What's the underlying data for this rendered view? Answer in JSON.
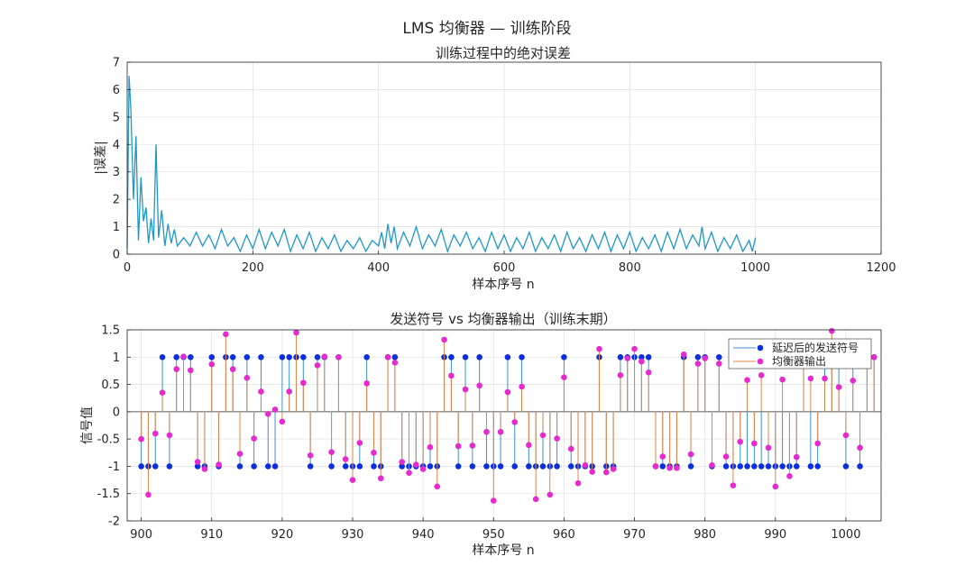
{
  "figure": {
    "suptitle": "LMS 均衡器 — 训练阶段"
  },
  "chart_data": [
    {
      "type": "line",
      "title": "训练过程中的绝对误差",
      "xlabel": "样本序号 n",
      "ylabel": "|误差|",
      "xlim": [
        0,
        1200
      ],
      "ylim": [
        0,
        7
      ],
      "xticks": [
        "0",
        "200",
        "400",
        "600",
        "800",
        "1000",
        "1200"
      ],
      "yticks": [
        "0",
        "1",
        "2",
        "3",
        "4",
        "5",
        "6",
        "7"
      ],
      "grid": true,
      "color": "#1f97c9",
      "x": [
        0,
        3,
        6,
        10,
        14,
        18,
        22,
        26,
        30,
        34,
        38,
        42,
        46,
        50,
        55,
        60,
        65,
        70,
        75,
        80,
        90,
        100,
        110,
        120,
        130,
        140,
        150,
        160,
        170,
        180,
        190,
        200,
        210,
        220,
        230,
        240,
        250,
        260,
        270,
        280,
        290,
        300,
        310,
        320,
        330,
        340,
        350,
        360,
        370,
        380,
        390,
        400,
        405,
        410,
        415,
        420,
        425,
        430,
        440,
        450,
        460,
        470,
        480,
        490,
        500,
        510,
        520,
        530,
        540,
        550,
        560,
        570,
        580,
        590,
        600,
        610,
        620,
        630,
        640,
        650,
        660,
        670,
        680,
        690,
        700,
        710,
        720,
        730,
        740,
        750,
        760,
        770,
        780,
        790,
        800,
        810,
        820,
        830,
        840,
        850,
        860,
        870,
        880,
        890,
        900,
        910,
        915,
        920,
        930,
        940,
        950,
        960,
        970,
        980,
        990,
        995,
        1000
      ],
      "values": [
        0.2,
        6.5,
        5.2,
        2.0,
        4.3,
        0.5,
        2.8,
        1.2,
        1.7,
        0.4,
        1.3,
        0.5,
        4.0,
        0.6,
        1.6,
        0.3,
        1.1,
        0.4,
        0.9,
        0.3,
        0.6,
        0.3,
        0.8,
        0.3,
        0.7,
        0.2,
        0.9,
        0.3,
        0.6,
        0.1,
        0.7,
        0.2,
        0.9,
        0.2,
        0.8,
        0.3,
        0.9,
        0.1,
        0.7,
        0.2,
        0.8,
        0.1,
        0.6,
        0.2,
        0.7,
        0.1,
        0.5,
        0.2,
        0.6,
        0.1,
        0.5,
        0.3,
        0.8,
        0.2,
        1.1,
        0.4,
        1.0,
        0.2,
        0.8,
        0.3,
        1.0,
        0.2,
        0.7,
        0.3,
        0.9,
        0.1,
        0.7,
        0.3,
        0.8,
        0.2,
        0.6,
        0.1,
        0.8,
        0.2,
        0.7,
        0.1,
        0.6,
        0.2,
        0.8,
        0.1,
        0.6,
        0.2,
        0.7,
        0.1,
        0.8,
        0.2,
        0.6,
        0.1,
        0.7,
        0.2,
        0.8,
        0.1,
        0.7,
        0.2,
        0.8,
        0.1,
        0.6,
        0.2,
        0.7,
        0.1,
        0.8,
        0.2,
        0.9,
        0.2,
        0.7,
        0.3,
        1.0,
        0.2,
        0.8,
        0.1,
        0.6,
        0.2,
        0.7,
        0.1,
        0.5,
        0.1,
        0.6
      ]
    },
    {
      "type": "stem",
      "title": "发送符号 vs 均衡器输出（训练末期）",
      "xlabel": "样本序号 n",
      "ylabel": "信号值",
      "xlim": [
        898,
        1005
      ],
      "ylim": [
        -2,
        1.5
      ],
      "xticks": [
        "900",
        "910",
        "920",
        "930",
        "940",
        "950",
        "960",
        "970",
        "980",
        "990",
        "1000"
      ],
      "yticks": [
        "-2",
        "-1.5",
        "-1",
        "-0.5",
        "0",
        "0.5",
        "1",
        "1.5"
      ],
      "grid": true,
      "legend": "top-right",
      "x": [
        900,
        901,
        902,
        903,
        904,
        905,
        906,
        907,
        908,
        909,
        910,
        911,
        912,
        913,
        914,
        915,
        916,
        917,
        918,
        919,
        920,
        921,
        922,
        923,
        924,
        925,
        926,
        927,
        928,
        929,
        930,
        931,
        932,
        933,
        934,
        935,
        936,
        937,
        938,
        939,
        940,
        941,
        942,
        943,
        944,
        945,
        946,
        947,
        948,
        949,
        950,
        951,
        952,
        953,
        954,
        955,
        956,
        957,
        958,
        959,
        960,
        961,
        962,
        963,
        964,
        965,
        966,
        967,
        968,
        969,
        970,
        971,
        972,
        973,
        974,
        975,
        976,
        977,
        978,
        979,
        980,
        981,
        982,
        983,
        984,
        985,
        986,
        987,
        988,
        989,
        990,
        991,
        992,
        993,
        994,
        995,
        996,
        997,
        998,
        999,
        1000,
        1001,
        1002,
        1003,
        1004
      ],
      "series": [
        {
          "name": "延迟后的发送符号",
          "color": "#0a2ee0",
          "stem_color": "#3d8fd1",
          "values": [
            -1,
            -1,
            -1,
            1,
            -1,
            1,
            1,
            1,
            -1,
            -1,
            1,
            -1,
            1,
            1,
            -1,
            1,
            -1,
            1,
            -1,
            -1,
            1,
            1,
            1,
            1,
            -1,
            1,
            1,
            -1,
            1,
            -1,
            -1,
            -1,
            1,
            -1,
            -1,
            1,
            1,
            -1,
            -1,
            -1,
            -1,
            -1,
            -1,
            1,
            1,
            -1,
            1,
            -1,
            1,
            -1,
            -1,
            -1,
            1,
            -1,
            1,
            -1,
            -1,
            -1,
            -1,
            -1,
            1,
            -1,
            -1,
            -1,
            -1,
            1,
            -1,
            -1,
            1,
            1,
            1,
            1,
            1,
            -1,
            -1,
            -1,
            -1,
            1,
            -1,
            1,
            1,
            -1,
            1,
            -1,
            -1,
            -1,
            -1,
            -1,
            -1,
            -1,
            -1,
            -1,
            -1,
            -1,
            1,
            -1,
            -1,
            1,
            1,
            1,
            -1,
            1,
            -1,
            1,
            1
          ]
        },
        {
          "name": "均衡器输出",
          "color": "#e62acf",
          "stem_color": "#e0864a",
          "values": [
            -0.5,
            -1.52,
            -0.4,
            0.35,
            -0.43,
            0.78,
            1.01,
            0.76,
            -0.92,
            -1.05,
            0.87,
            -0.97,
            1.42,
            0.78,
            -0.77,
            0.62,
            -0.49,
            0.37,
            -0.04,
            0.04,
            -0.18,
            0.37,
            1.45,
            0.53,
            -0.8,
            0.85,
            1.01,
            -0.74,
            1.0,
            -0.87,
            -1.25,
            -0.57,
            0.52,
            -0.75,
            -1.22,
            1.0,
            0.9,
            -0.92,
            -1.12,
            -0.97,
            -1.05,
            -0.65,
            -1.37,
            1.32,
            0.66,
            -0.63,
            0.41,
            -0.62,
            0.48,
            -0.37,
            -1.63,
            -0.37,
            0.36,
            -0.19,
            0.46,
            -0.61,
            -1.6,
            -0.43,
            -1.52,
            -0.49,
            0.63,
            -0.68,
            -1.31,
            -0.98,
            -1.1,
            1.15,
            -1.11,
            -1.05,
            0.67,
            0.98,
            1.15,
            0.92,
            0.72,
            -1.0,
            -0.82,
            -1.03,
            -1.03,
            1.05,
            -0.78,
            0.88,
            0.98,
            -0.98,
            0.88,
            -0.82,
            -1.35,
            -0.55,
            0.58,
            -0.58,
            0.67,
            -0.66,
            -1.37,
            0.59,
            -1.18,
            -0.83,
            0.96,
            0.61,
            -0.58,
            0.61,
            1.48,
            0.45,
            -0.43,
            0.57,
            -0.66,
            1.0,
            1.0
          ]
        }
      ]
    }
  ]
}
